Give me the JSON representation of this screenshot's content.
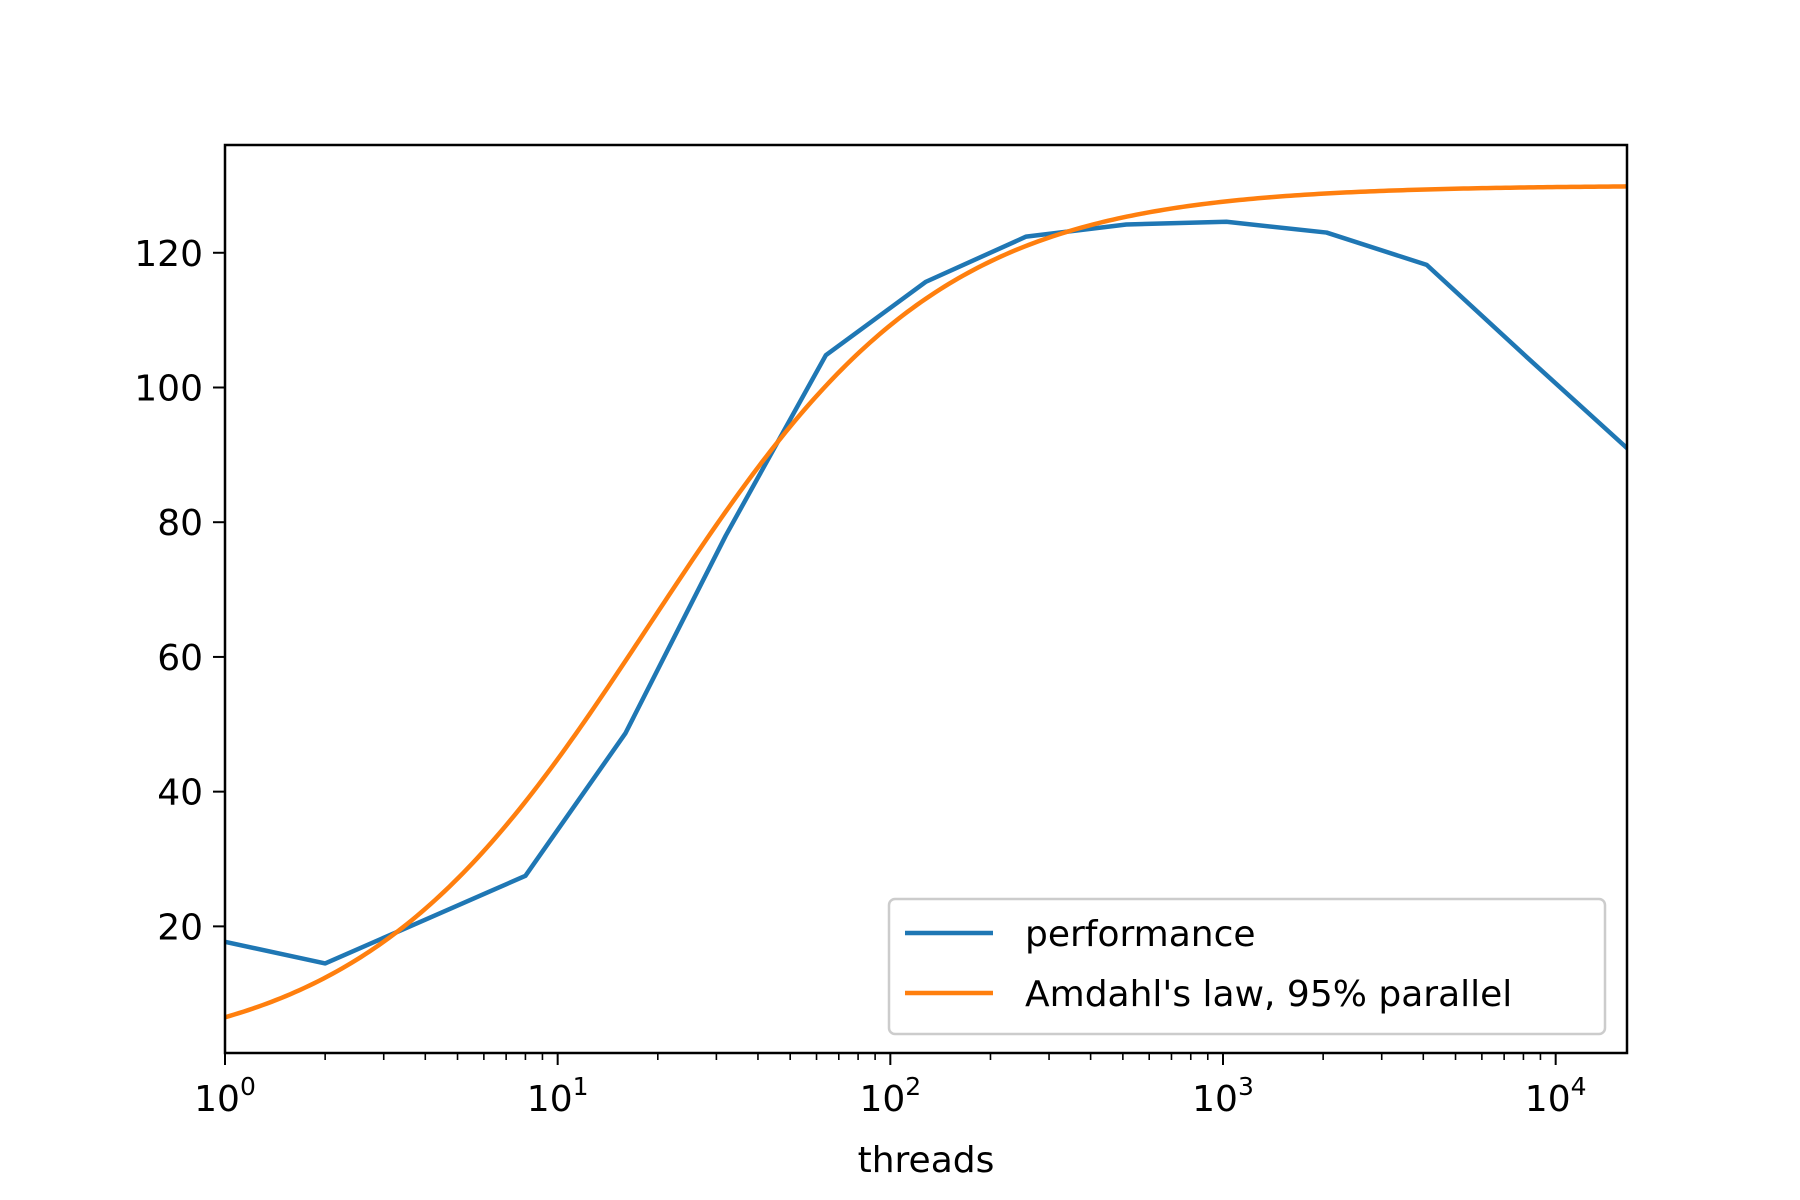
{
  "chart_data": {
    "type": "line",
    "xlabel": "threads",
    "ylabel": "",
    "title": "",
    "xscale": "log",
    "xlim": [
      1,
      16384
    ],
    "ylim": [
      1.2,
      136
    ],
    "grid": false,
    "legend_position": "lower-right",
    "x_major_ticks": [
      1,
      10,
      100,
      1000,
      10000
    ],
    "x_tick_labels": [
      {
        "base": "10",
        "exp": "0"
      },
      {
        "base": "10",
        "exp": "1"
      },
      {
        "base": "10",
        "exp": "2"
      },
      {
        "base": "10",
        "exp": "3"
      },
      {
        "base": "10",
        "exp": "4"
      }
    ],
    "y_ticks": [
      20,
      40,
      60,
      80,
      100,
      120
    ],
    "y_tick_labels": [
      "20",
      "40",
      "60",
      "80",
      "100",
      "120"
    ],
    "series": [
      {
        "name": "performance",
        "color": "#1f77b4",
        "x": [
          1,
          2,
          4,
          8,
          16,
          32,
          64,
          128,
          256,
          512,
          1024,
          2048,
          4096,
          8192,
          16384
        ],
        "y": [
          17.7,
          14.5,
          21.0,
          27.5,
          48.7,
          78.0,
          104.8,
          115.7,
          122.4,
          124.2,
          124.6,
          123.0,
          118.2,
          104.5,
          91.0
        ]
      },
      {
        "name": "Amdahl's law, 95% parallel",
        "color": "#ff7f0e",
        "model": {
          "serial_fraction": 0.05,
          "scale": 6.5
        }
      }
    ]
  }
}
